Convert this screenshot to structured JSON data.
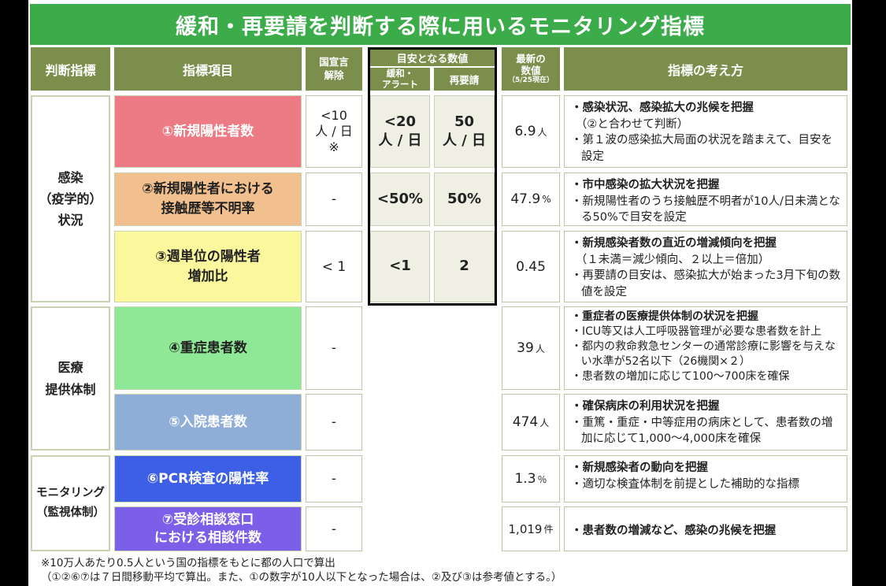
{
  "title": "緩和・再要請を判断する際に用いるモニタリング指標",
  "headers": {
    "indicator": "判断指標",
    "item": "指標項目",
    "national_release": "国宣言\n解除",
    "target_group": "目安となる数値",
    "relax": "緩和・\nアラート",
    "rerequest": "再要請",
    "latest": "最新の\n数値",
    "latest_note": "（5/25現在）",
    "approach": "指標の考え方"
  },
  "categories": {
    "infection": "感染\n（疫学的）\n状況",
    "medical": "医療\n提供体制",
    "monitoring": "モニタリング\n（監視体制）"
  },
  "rows": [
    {
      "item": "①新規陽性者数",
      "national": "<10\n人 / 日\n※",
      "relax": "<20\n人 / 日",
      "rerequest": "50\n人 / 日",
      "latest": "6.9",
      "unit": "人",
      "desc": [
        "・感染状況、感染拡大の兆候を把握",
        "（②と合わせて判断）",
        "・第１波の感染拡大局面の状況を踏まえて、目安を設定"
      ]
    },
    {
      "item": "②新規陽性者における\n接触歴等不明率",
      "national": "-",
      "relax": "<50%",
      "rerequest": "50%",
      "latest": "47.9",
      "unit": "%",
      "desc": [
        "・市中感染の拡大状況を把握",
        "・新規陽性者のうち接触歴不明者が10人/日未満となる50%で目安を設定"
      ]
    },
    {
      "item": "③週単位の陽性者\n増加比",
      "national": "< 1",
      "relax": "<1",
      "rerequest": "2",
      "latest": "0.45",
      "unit": "",
      "desc": [
        "・新規感染者数の直近の増減傾向を把握",
        "（１未満＝減少傾向、２以上＝倍加）",
        "・再要請の目安は、感染拡大が始まった3月下旬の数値を設定"
      ]
    },
    {
      "item": "④重症患者数",
      "national": "-",
      "latest": "39",
      "unit": "人",
      "desc": [
        "・重症者の医療提供体制の状況を把握",
        "・ICU等又は人工呼吸器管理が必要な患者数を計上",
        "・都内の救命救急センターの通常診療に影響を与えない水準が52名以下（26機関×２）",
        "・患者数の増加に応じて100～700床を確保"
      ]
    },
    {
      "item": "⑤入院患者数",
      "national": "-",
      "latest": "474",
      "unit": "人",
      "desc": [
        "・確保病床の利用状況を把握",
        "・重篤・重症・中等症用の病床として、患者数の増加に応じて1,000～4,000床を確保"
      ]
    },
    {
      "item": "⑥PCR検査の陽性率",
      "national": "-",
      "latest": "1.3",
      "unit": "％",
      "desc": [
        "・新規感染者の動向を把握",
        "・適切な検査体制を前提とした補助的な指標"
      ]
    },
    {
      "item": "⑦受診相談窓口\nにおける相談件数",
      "national": "-",
      "latest": "1,019",
      "unit": "件",
      "desc": [
        "・患者数の増減など、感染の兆候を把握"
      ]
    }
  ],
  "notes": [
    "※10万人あたり0.5人という国の指標をもとに都の人口で算出",
    "（①②⑥⑦は７日間移動平均で算出。また、①の数字が10人以下となった場合は、②及び③は参考値とする。）"
  ],
  "colors": {
    "title_bg": "#3cac4a",
    "header_bg": "#7b8e4b",
    "row1": "#ec7b85",
    "row2": "#f1c08e",
    "row3": "#fbf79c",
    "row4": "#8fe895",
    "row5": "#8eaed8",
    "row6": "#3d5fe6",
    "row7": "#7b5fe8"
  }
}
